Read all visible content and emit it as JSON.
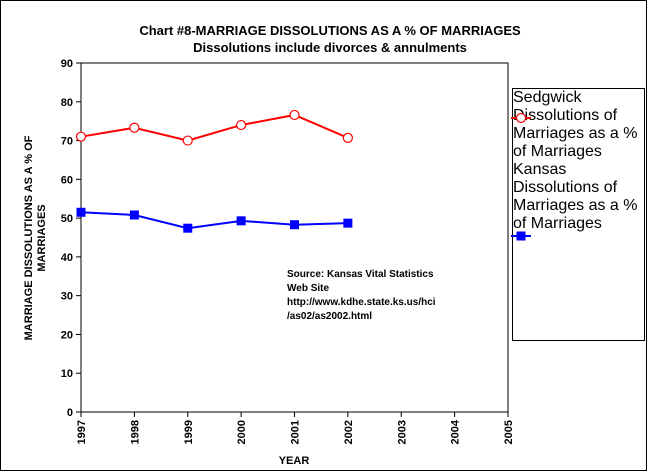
{
  "chart_data": {
    "type": "line",
    "title": [
      "Chart #8-MARRIAGE DISSOLUTIONS AS A % OF MARRIAGES",
      "Dissolutions include divorces & annulments"
    ],
    "xlabel": "YEAR",
    "ylabel": [
      "MARRIAGE DISSOLUTIONS AS A % OF",
      "MARRIAGES"
    ],
    "x": [
      1997,
      1998,
      1999,
      2000,
      2001,
      2002
    ],
    "series": [
      {
        "name": "Sedgwick Dissolutions of Marriages as a % of Marriages",
        "color": "#ff0000",
        "marker": "open-circle",
        "values": [
          71,
          73.3,
          70,
          74,
          76.6,
          70.7
        ]
      },
      {
        "name": "Kansas Dissolutions of Marriages as a % of Marriages",
        "color": "#0000ff",
        "marker": "filled-square",
        "values": [
          51.5,
          50.8,
          47.4,
          49.3,
          48.3,
          48.7
        ]
      }
    ],
    "xlim": [
      1997,
      2005
    ],
    "xticks": [
      1997,
      1998,
      1999,
      2000,
      2001,
      2002,
      2003,
      2004,
      2005
    ],
    "ylim": [
      0,
      90
    ],
    "yticks": [
      0,
      10,
      20,
      30,
      40,
      50,
      60,
      70,
      80,
      90
    ],
    "grid": false,
    "legend": "right",
    "annotation": [
      "Source: Kansas Vital Statistics",
      "Web Site",
      "http://www.kdhe.state.ks.us/hci",
      "/as02/as2002.html"
    ]
  }
}
